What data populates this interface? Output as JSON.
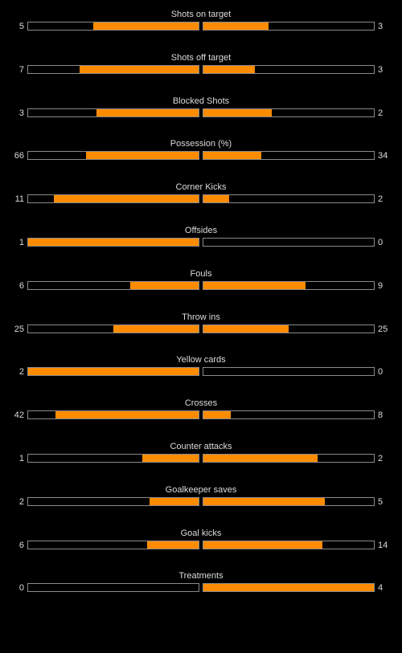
{
  "colors": {
    "background": "#000000",
    "bar_fill": "#ff8c00",
    "bar_border": "#8a8a8a",
    "text": "#dcdcdc"
  },
  "stats": [
    {
      "label": "Shots on target",
      "home": "5",
      "away": "3",
      "home_fill": 0.62,
      "away_fill": 0.38
    },
    {
      "label": "Shots off target",
      "home": "7",
      "away": "3",
      "home_fill": 0.7,
      "away_fill": 0.3
    },
    {
      "label": "Blocked Shots",
      "home": "3",
      "away": "2",
      "home_fill": 0.6,
      "away_fill": 0.4
    },
    {
      "label": "Possession (%)",
      "home": "66",
      "away": "34",
      "home_fill": 0.66,
      "away_fill": 0.34
    },
    {
      "label": "Corner Kicks",
      "home": "11",
      "away": "2",
      "home_fill": 0.85,
      "away_fill": 0.15
    },
    {
      "label": "Offsides",
      "home": "1",
      "away": "0",
      "home_fill": 1.0,
      "away_fill": 0.0
    },
    {
      "label": "Fouls",
      "home": "6",
      "away": "9",
      "home_fill": 0.4,
      "away_fill": 0.6
    },
    {
      "label": "Throw ins",
      "home": "25",
      "away": "25",
      "home_fill": 0.5,
      "away_fill": 0.5
    },
    {
      "label": "Yellow cards",
      "home": "2",
      "away": "0",
      "home_fill": 1.0,
      "away_fill": 0.0
    },
    {
      "label": "Crosses",
      "home": "42",
      "away": "8",
      "home_fill": 0.84,
      "away_fill": 0.16
    },
    {
      "label": "Counter attacks",
      "home": "1",
      "away": "2",
      "home_fill": 0.33,
      "away_fill": 0.67
    },
    {
      "label": "Goalkeeper saves",
      "home": "2",
      "away": "5",
      "home_fill": 0.29,
      "away_fill": 0.71
    },
    {
      "label": "Goal kicks",
      "home": "6",
      "away": "14",
      "home_fill": 0.3,
      "away_fill": 0.7
    },
    {
      "label": "Treatments",
      "home": "0",
      "away": "4",
      "home_fill": 0.0,
      "away_fill": 1.0
    }
  ]
}
